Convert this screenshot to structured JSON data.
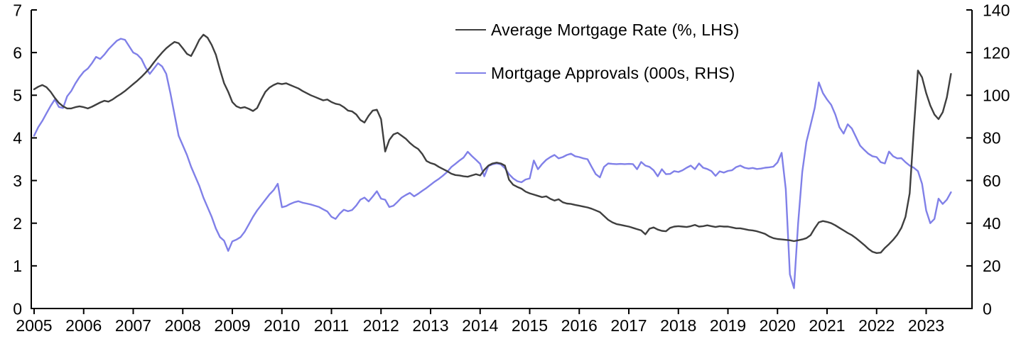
{
  "chart_data": {
    "type": "line",
    "title": "",
    "x_axis": {
      "unit": "year",
      "start_year": 2005,
      "frequency": "monthly",
      "tick_labels": [
        "2005",
        "2006",
        "2007",
        "2008",
        "2009",
        "2010",
        "2011",
        "2012",
        "2013",
        "2014",
        "2015",
        "2016",
        "2017",
        "2018",
        "2019",
        "2020",
        "2021",
        "2022",
        "2023"
      ]
    },
    "left_axis": {
      "min": 0,
      "max": 7,
      "tick_labels": [
        "0",
        "1",
        "2",
        "3",
        "4",
        "5",
        "6",
        "7"
      ]
    },
    "right_axis": {
      "min": 0,
      "max": 140,
      "tick_labels": [
        "0",
        "20",
        "40",
        "60",
        "80",
        "100",
        "120",
        "140"
      ]
    },
    "grid": "off",
    "legend_position": "top-center",
    "axis_color": "#000000",
    "series": [
      {
        "name": "Average Mortgage Rate (%, LHS)",
        "axis": "left",
        "color": "#3f3f3f",
        "values": [
          5.14,
          5.2,
          5.24,
          5.19,
          5.08,
          4.94,
          4.82,
          4.74,
          4.69,
          4.69,
          4.72,
          4.74,
          4.72,
          4.69,
          4.73,
          4.78,
          4.83,
          4.87,
          4.85,
          4.9,
          4.97,
          5.03,
          5.1,
          5.18,
          5.26,
          5.34,
          5.43,
          5.53,
          5.64,
          5.77,
          5.89,
          6.0,
          6.1,
          6.18,
          6.25,
          6.22,
          6.1,
          5.97,
          5.92,
          6.1,
          6.3,
          6.42,
          6.35,
          6.18,
          5.95,
          5.6,
          5.28,
          5.08,
          4.84,
          4.74,
          4.7,
          4.72,
          4.68,
          4.63,
          4.7,
          4.9,
          5.08,
          5.18,
          5.24,
          5.28,
          5.26,
          5.28,
          5.24,
          5.2,
          5.16,
          5.1,
          5.05,
          5.0,
          4.96,
          4.92,
          4.88,
          4.9,
          4.84,
          4.8,
          4.78,
          4.72,
          4.64,
          4.62,
          4.55,
          4.42,
          4.36,
          4.52,
          4.64,
          4.66,
          4.44,
          3.68,
          3.95,
          4.08,
          4.12,
          4.05,
          3.98,
          3.88,
          3.8,
          3.74,
          3.62,
          3.46,
          3.41,
          3.38,
          3.32,
          3.27,
          3.22,
          3.16,
          3.13,
          3.12,
          3.1,
          3.09,
          3.12,
          3.15,
          3.12,
          3.25,
          3.35,
          3.4,
          3.42,
          3.4,
          3.35,
          3.02,
          2.9,
          2.85,
          2.81,
          2.74,
          2.7,
          2.67,
          2.64,
          2.61,
          2.63,
          2.57,
          2.53,
          2.56,
          2.49,
          2.46,
          2.45,
          2.43,
          2.41,
          2.39,
          2.37,
          2.34,
          2.3,
          2.26,
          2.17,
          2.08,
          2.02,
          1.98,
          1.96,
          1.94,
          1.92,
          1.89,
          1.86,
          1.83,
          1.74,
          1.87,
          1.9,
          1.85,
          1.82,
          1.81,
          1.89,
          1.92,
          1.93,
          1.92,
          1.91,
          1.93,
          1.96,
          1.92,
          1.93,
          1.95,
          1.93,
          1.91,
          1.93,
          1.92,
          1.92,
          1.9,
          1.88,
          1.88,
          1.86,
          1.84,
          1.83,
          1.81,
          1.78,
          1.75,
          1.69,
          1.65,
          1.63,
          1.62,
          1.61,
          1.6,
          1.58,
          1.6,
          1.62,
          1.65,
          1.72,
          1.88,
          2.02,
          2.05,
          2.03,
          2.0,
          1.95,
          1.89,
          1.83,
          1.77,
          1.72,
          1.65,
          1.57,
          1.49,
          1.4,
          1.33,
          1.3,
          1.31,
          1.42,
          1.51,
          1.61,
          1.73,
          1.89,
          2.15,
          2.7,
          4.2,
          5.58,
          5.42,
          5.05,
          4.76,
          4.55,
          4.44,
          4.6,
          4.95,
          5.5
        ]
      },
      {
        "name": "Mortgage Approvals (000s, RHS)",
        "axis": "right",
        "color": "#8080e8",
        "values": [
          81,
          85,
          88,
          91.5,
          95,
          98,
          94.5,
          94,
          99.5,
          102,
          105.5,
          108.5,
          111,
          112.5,
          115,
          118,
          117,
          119,
          121.5,
          123.5,
          125.5,
          126.5,
          126,
          123,
          120,
          119,
          117,
          113,
          110,
          112.5,
          115,
          113.5,
          110,
          101,
          91,
          81,
          76.5,
          72,
          66.5,
          62,
          57.5,
          52,
          47.5,
          43,
          37.5,
          33.5,
          31.8,
          27,
          31.5,
          32.3,
          33.5,
          36,
          39.5,
          43,
          46,
          48.5,
          51,
          53.5,
          55.5,
          58.5,
          47.5,
          48,
          49,
          49.8,
          50.3,
          49.6,
          49.2,
          48.8,
          48.2,
          47.6,
          46.5,
          45.5,
          43,
          42,
          44.5,
          46.3,
          45.6,
          46.2,
          48.3,
          51,
          52,
          50.2,
          52.5,
          55,
          51.5,
          51,
          47.6,
          48.2,
          50,
          52,
          53.2,
          54.2,
          52.6,
          53.8,
          55.2,
          56.5,
          58,
          59.5,
          60.8,
          62.3,
          64,
          66.3,
          67.8,
          69.4,
          70.8,
          73.5,
          71.5,
          69.7,
          67.8,
          62,
          66.8,
          67.6,
          68,
          67.6,
          65.8,
          63,
          61,
          59.7,
          59.2,
          60.5,
          61,
          69.4,
          65.3,
          67.7,
          69.7,
          71,
          72,
          70.4,
          71,
          72,
          72.6,
          71.4,
          71,
          70.4,
          70,
          66.4,
          63,
          61.5,
          66.4,
          68,
          67.8,
          67.7,
          67.8,
          67.7,
          67.8,
          67.7,
          65.3,
          68.7,
          67,
          66.4,
          64.8,
          62,
          65.3,
          63,
          63.1,
          64.4,
          64,
          64.8,
          66,
          67,
          65.3,
          68,
          66,
          65.4,
          64.4,
          62.2,
          64.3,
          63.7,
          64.5,
          64.8,
          66.3,
          67,
          66,
          65.6,
          65.9,
          65.4,
          65.6,
          66,
          66.2,
          66.5,
          68.5,
          73,
          56,
          16,
          9.5,
          40,
          64,
          78,
          86,
          94,
          106,
          101,
          98,
          95.5,
          91,
          85,
          82,
          86.4,
          84.4,
          80.4,
          76.4,
          74.4,
          72.6,
          71.4,
          71,
          68.6,
          68,
          73.6,
          71.4,
          70.4,
          70.5,
          68.6,
          67,
          66,
          64.4,
          58.5,
          46,
          40,
          42,
          51.5,
          49,
          51,
          54.5
        ]
      }
    ],
    "legend": [
      {
        "label": "Average Mortgage Rate (%, LHS)"
      },
      {
        "label": "Mortgage Approvals (000s, RHS)"
      }
    ]
  }
}
